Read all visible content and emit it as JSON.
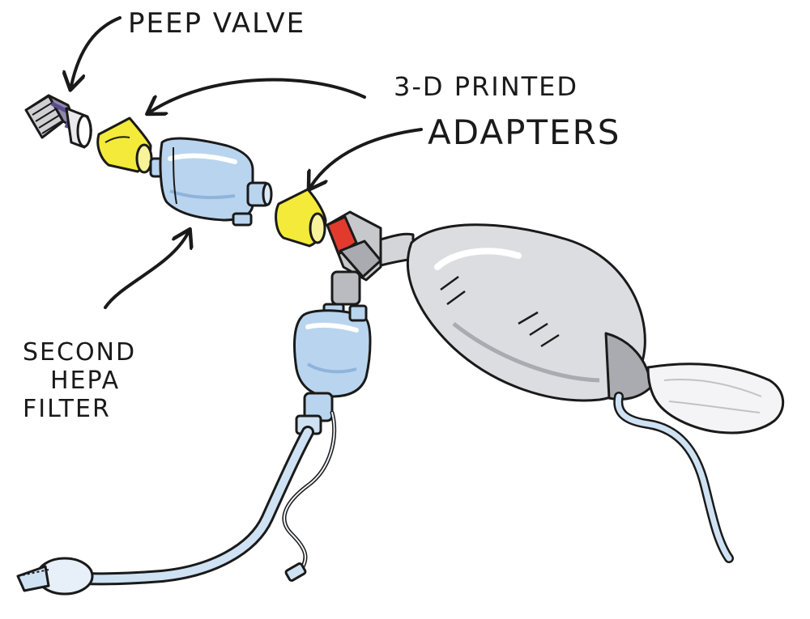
{
  "labels": {
    "peep_valve": "PEEP VALVE",
    "printed_adapters_line1": "3-D PRINTED",
    "printed_adapters_line2": "ADAPTERS",
    "second_hepa_line1": "SECOND",
    "second_hepa_line2": "HEPA",
    "second_hepa_line3": "FILTER"
  },
  "colors": {
    "ink": "#1a1a1a",
    "adapter_yellow": "#f4ea3a",
    "filter_blue": "#b9d4ee",
    "filter_blue_dark": "#8fb4dc",
    "bag_gray": "#dcdde0",
    "bag_gray_dark": "#a9abb0",
    "valve_red": "#e23b2e",
    "tube_blue": "#cfe2f3",
    "peep_purple": "#5a4c8e"
  }
}
